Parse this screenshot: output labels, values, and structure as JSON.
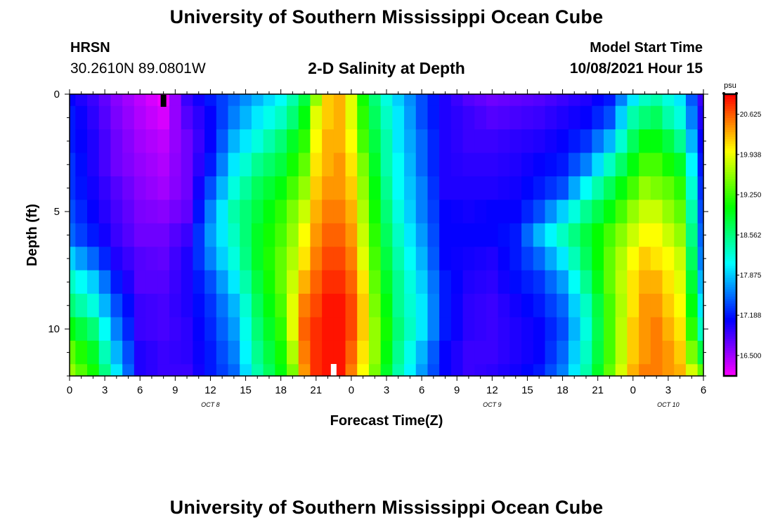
{
  "page": {
    "title_top": "University of Southern Mississippi Ocean Cube",
    "title_bottom": "University of Southern Mississippi Ocean Cube",
    "station_code": "HRSN",
    "station_coords": "30.2610N  89.0801W",
    "plot_title": "2-D Salinity at Depth",
    "model_label": "Model Start Time",
    "model_time": "10/08/2021 Hour 15"
  },
  "chart_data": {
    "type": "heatmap",
    "title": "2-D Salinity at Depth",
    "xlabel": "Forecast Time(Z)",
    "ylabel": "Depth (ft)",
    "x_range_hours": [
      0,
      54
    ],
    "x_ticks": [
      "0",
      "3",
      "6",
      "9",
      "12",
      "15",
      "18",
      "21",
      "0",
      "3",
      "6",
      "9",
      "12",
      "15",
      "18",
      "21",
      "0",
      "3",
      "6"
    ],
    "day_labels": [
      {
        "label": "OCT 8",
        "hour": 12
      },
      {
        "label": "OCT 9",
        "hour": 36
      },
      {
        "label": "OCT 10",
        "hour": 51
      }
    ],
    "y_range_ft": [
      0,
      12
    ],
    "y_ticks": [
      0,
      5,
      10
    ],
    "colorbar": {
      "unit": "psu",
      "min": 16.15,
      "max": 20.97,
      "tick_values": [
        16.5,
        17.188,
        17.875,
        18.562,
        19.25,
        19.938,
        20.625
      ],
      "tick_labels": [
        "16.500",
        "17.188",
        "17.875",
        "18.562",
        "19.250",
        "19.938",
        "20.625"
      ]
    },
    "markers": [
      {
        "type": "current_time",
        "hour": 8,
        "depth_ft": 0,
        "color": "#000000"
      },
      {
        "type": "marker",
        "hour": 22.5,
        "depth_ft": 12,
        "color": "#ffffff"
      }
    ],
    "depth_levels_ft": [
      0,
      1,
      2,
      3,
      4,
      5,
      6,
      7,
      8,
      9,
      10,
      11,
      12
    ],
    "profile_hours": [
      0,
      2,
      4,
      6,
      8,
      10,
      12,
      14,
      16,
      18,
      19,
      20,
      21,
      22,
      23,
      24,
      25,
      26,
      27,
      28,
      30,
      32,
      34,
      36,
      38,
      40,
      42,
      44,
      46,
      48,
      49,
      50,
      51,
      52,
      54
    ],
    "salinity_psu": [
      [
        17.1,
        17.2,
        17.2,
        17.3,
        17.3,
        17.4,
        17.5,
        17.9,
        18.3,
        18.6,
        19.0,
        19.4,
        19.6
      ],
      [
        16.9,
        16.95,
        17.0,
        17.0,
        17.05,
        17.1,
        17.2,
        17.5,
        17.9,
        18.2,
        18.6,
        18.9,
        19.1
      ],
      [
        16.6,
        16.65,
        16.7,
        16.7,
        16.8,
        16.85,
        16.9,
        17.0,
        17.2,
        17.4,
        17.6,
        17.8,
        18.0
      ],
      [
        16.4,
        16.45,
        16.5,
        16.55,
        16.6,
        16.65,
        16.7,
        16.8,
        16.8,
        16.9,
        16.9,
        17.0,
        17.0
      ],
      [
        16.2,
        16.3,
        16.4,
        16.45,
        16.5,
        16.6,
        16.7,
        16.75,
        16.8,
        16.85,
        16.85,
        16.9,
        16.9
      ],
      [
        16.9,
        16.8,
        16.7,
        16.7,
        16.7,
        16.75,
        16.9,
        17.0,
        17.0,
        17.0,
        16.95,
        16.95,
        16.9
      ],
      [
        17.2,
        17.1,
        17.1,
        17.2,
        17.4,
        17.6,
        17.7,
        17.6,
        17.4,
        17.3,
        17.25,
        17.2,
        17.2
      ],
      [
        17.5,
        17.6,
        17.8,
        18.0,
        18.2,
        18.4,
        18.3,
        18.2,
        18.0,
        17.8,
        17.7,
        17.6,
        17.5
      ],
      [
        17.8,
        18.0,
        18.2,
        18.5,
        18.7,
        18.8,
        18.9,
        18.9,
        18.8,
        18.7,
        18.6,
        18.5,
        18.4
      ],
      [
        18.1,
        18.3,
        18.6,
        18.8,
        19.0,
        19.2,
        19.3,
        19.4,
        19.4,
        19.3,
        19.2,
        19.1,
        19.0
      ],
      [
        18.4,
        18.6,
        18.9,
        19.1,
        19.3,
        19.5,
        19.6,
        19.7,
        19.8,
        19.9,
        19.9,
        19.7,
        19.5
      ],
      [
        18.8,
        19.0,
        19.2,
        19.4,
        19.6,
        19.8,
        20.0,
        20.1,
        20.3,
        20.5,
        20.6,
        20.5,
        20.4
      ],
      [
        19.6,
        19.9,
        20.0,
        20.1,
        20.2,
        20.3,
        20.4,
        20.5,
        20.6,
        20.7,
        20.8,
        20.8,
        20.8
      ],
      [
        20.2,
        20.2,
        20.3,
        20.3,
        20.4,
        20.5,
        20.6,
        20.7,
        20.8,
        20.9,
        20.9,
        20.9,
        20.9
      ],
      [
        20.3,
        20.3,
        20.3,
        20.4,
        20.4,
        20.5,
        20.6,
        20.7,
        20.8,
        20.9,
        20.9,
        20.9,
        20.9
      ],
      [
        19.9,
        19.9,
        20.0,
        20.1,
        20.2,
        20.3,
        20.4,
        20.5,
        20.6,
        20.7,
        20.7,
        20.6,
        20.5
      ],
      [
        19.1,
        19.2,
        19.3,
        19.5,
        19.6,
        19.7,
        19.8,
        19.9,
        20.1,
        20.2,
        20.2,
        20.1,
        20.0
      ],
      [
        18.6,
        18.7,
        18.8,
        18.9,
        19.0,
        19.1,
        19.2,
        19.3,
        19.4,
        19.5,
        19.6,
        19.6,
        19.5
      ],
      [
        18.2,
        18.3,
        18.4,
        18.4,
        18.5,
        18.6,
        18.7,
        18.8,
        18.9,
        19.0,
        19.1,
        19.0,
        18.9
      ],
      [
        17.9,
        18.0,
        18.0,
        18.1,
        18.1,
        18.2,
        18.3,
        18.4,
        18.5,
        18.5,
        18.6,
        18.5,
        18.4
      ],
      [
        17.4,
        17.4,
        17.5,
        17.5,
        17.6,
        17.6,
        17.7,
        17.8,
        17.9,
        18.0,
        18.0,
        17.8,
        17.7
      ],
      [
        17.0,
        17.0,
        17.0,
        17.0,
        17.0,
        17.1,
        17.1,
        17.1,
        17.2,
        17.2,
        17.2,
        17.1,
        17.1
      ],
      [
        16.8,
        16.9,
        16.9,
        16.95,
        17.0,
        17.05,
        17.1,
        17.05,
        17.0,
        16.95,
        16.95,
        16.9,
        16.9
      ],
      [
        16.7,
        16.8,
        16.9,
        16.95,
        17.0,
        17.1,
        17.1,
        17.0,
        16.95,
        16.9,
        16.9,
        16.9,
        16.95
      ],
      [
        16.75,
        16.85,
        16.95,
        17.0,
        17.05,
        17.1,
        17.2,
        17.2,
        17.15,
        17.05,
        17.0,
        17.0,
        17.05
      ],
      [
        16.8,
        16.9,
        17.0,
        17.1,
        17.2,
        17.4,
        17.8,
        17.5,
        17.3,
        17.2,
        17.1,
        17.1,
        17.2
      ],
      [
        16.9,
        17.0,
        17.1,
        17.2,
        17.4,
        17.9,
        18.3,
        18.0,
        17.7,
        17.5,
        17.4,
        17.5,
        17.6
      ],
      [
        17.0,
        17.1,
        17.3,
        17.6,
        18.1,
        18.5,
        18.8,
        18.7,
        18.5,
        18.3,
        18.2,
        18.3,
        18.4
      ],
      [
        17.2,
        17.4,
        17.8,
        18.3,
        18.7,
        19.0,
        19.3,
        19.4,
        19.4,
        19.3,
        19.3,
        19.3,
        19.4
      ],
      [
        18.0,
        18.4,
        18.7,
        19.0,
        19.3,
        19.6,
        19.8,
        20.0,
        20.1,
        20.1,
        20.2,
        20.2,
        20.3
      ],
      [
        18.3,
        18.6,
        19.0,
        19.3,
        19.6,
        19.8,
        20.0,
        20.2,
        20.3,
        20.4,
        20.4,
        20.4,
        20.5
      ],
      [
        18.4,
        18.7,
        19.0,
        19.3,
        19.5,
        19.8,
        20.0,
        20.1,
        20.3,
        20.4,
        20.5,
        20.5,
        20.5
      ],
      [
        18.2,
        18.4,
        18.8,
        19.1,
        19.4,
        19.6,
        19.8,
        20.0,
        20.1,
        20.2,
        20.3,
        20.4,
        20.4
      ],
      [
        18.0,
        18.2,
        18.5,
        18.9,
        19.2,
        19.4,
        19.6,
        19.8,
        19.9,
        20.0,
        20.1,
        20.2,
        20.3
      ],
      [
        16.9,
        17.0,
        17.1,
        17.2,
        17.3,
        17.4,
        17.5,
        17.6,
        17.8,
        18.0,
        18.3,
        18.8,
        19.4
      ]
    ]
  }
}
